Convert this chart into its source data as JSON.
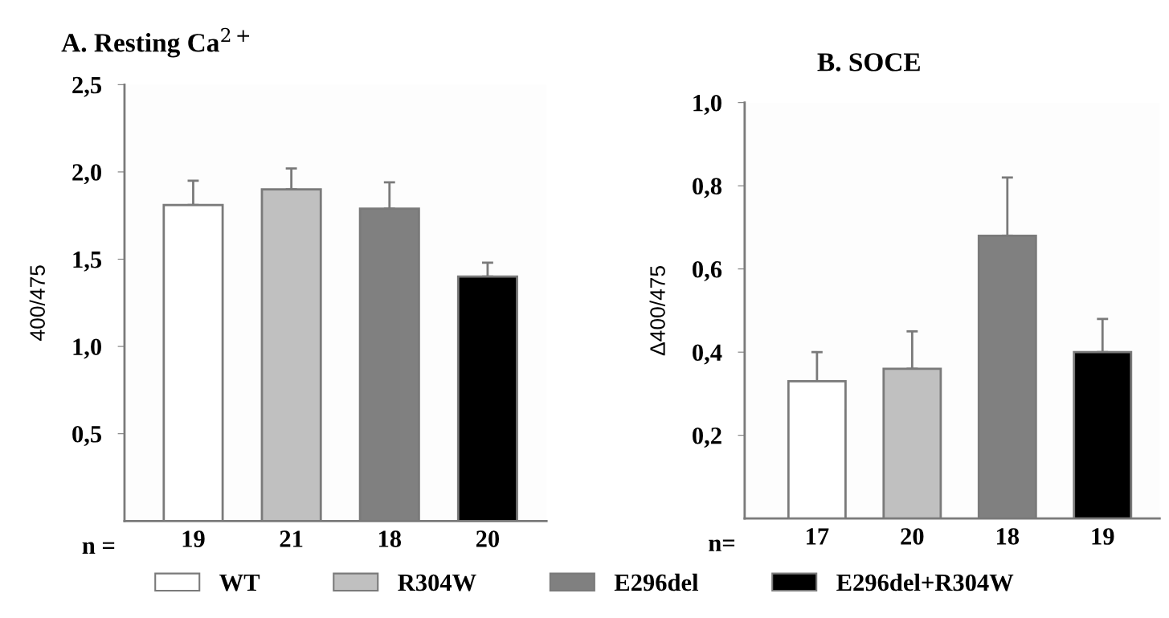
{
  "chart_data": [
    {
      "type": "bar",
      "title": "A. Resting Ca$^{2+}$",
      "ylabel": "400/475",
      "categories": [
        "19",
        "21",
        "18",
        "20"
      ],
      "annotations": [
        "n ="
      ],
      "series": [
        {
          "name": "WT",
          "color": "#ffffff",
          "values": [
            1.81,
            null,
            null,
            null
          ],
          "errors": [
            [
              1.81,
              1.95
            ],
            null,
            null,
            null
          ]
        },
        {
          "name": "R304W",
          "color": "#c0c0c0",
          "values": [
            null,
            1.9,
            null,
            null
          ],
          "errors": [
            null,
            [
              1.9,
              2.02
            ],
            null,
            null
          ]
        },
        {
          "name": "E296del",
          "color": "#808080",
          "values": [
            null,
            null,
            1.79,
            null
          ],
          "errors": [
            null,
            null,
            [
              1.79,
              1.94
            ],
            null
          ]
        },
        {
          "name": "E296del+R304W",
          "color": "#000000",
          "values": [
            null,
            null,
            null,
            1.4
          ],
          "errors": [
            null,
            null,
            null,
            [
              1.4,
              1.48
            ]
          ]
        }
      ],
      "ylim": [
        0,
        2.5
      ],
      "yticks": [
        {
          "value": 0.5,
          "label": "0,5"
        },
        {
          "value": 1.0,
          "label": "1,0"
        },
        {
          "value": 1.5,
          "label": "1,5"
        },
        {
          "value": 2.0,
          "label": "2,0"
        },
        {
          "value": 2.5,
          "label": "2,5"
        }
      ],
      "grid": false,
      "legend": "bottom"
    },
    {
      "type": "bar",
      "title": "B. SOCE",
      "ylabel": "Δ400/475",
      "categories": [
        "17",
        "20",
        "18",
        "19"
      ],
      "annotations": [
        "n="
      ],
      "series": [
        {
          "color": "#ffffff",
          "values": [
            0.33,
            null,
            null,
            null
          ],
          "errors": [
            [
              0.33,
              0.4
            ],
            null,
            null,
            null
          ]
        },
        {
          "color": "#c0c0c0",
          "values": [
            null,
            0.36,
            null,
            null
          ],
          "errors": [
            null,
            [
              0.36,
              0.45
            ],
            null,
            null
          ]
        },
        {
          "color": "#808080",
          "values": [
            null,
            null,
            0.68,
            null
          ],
          "errors": [
            null,
            null,
            [
              0.68,
              0.82
            ],
            null
          ]
        },
        {
          "color": "#000000",
          "values": [
            null,
            null,
            null,
            0.4
          ],
          "errors": [
            null,
            null,
            null,
            [
              0.4,
              0.48
            ]
          ]
        }
      ],
      "ylim": [
        0,
        1.0
      ],
      "yticks": [
        {
          "value": 0.2,
          "label": "0,2"
        },
        {
          "value": 0.4,
          "label": "0,4"
        },
        {
          "value": 0.6,
          "label": "0,6"
        },
        {
          "value": 0.8,
          "label": "0,8"
        },
        {
          "value": 1.0,
          "label": "1,0"
        }
      ],
      "grid": false
    }
  ]
}
